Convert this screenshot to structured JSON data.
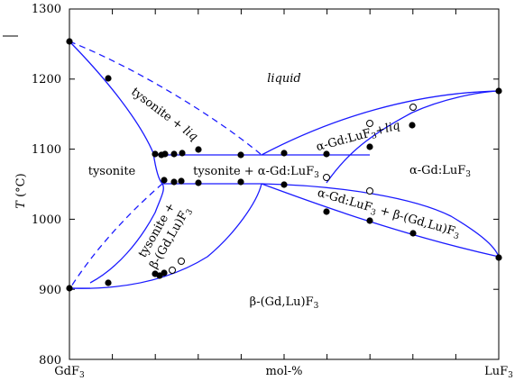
{
  "axes": {
    "y_label_main": "T",
    "y_label_unit": "(°C)",
    "y_ticks": [
      "1300",
      "1200",
      "1100",
      "1000",
      "900",
      "800"
    ],
    "x_tick_left": "GdF",
    "x_tick_middle": "mol-%",
    "x_tick_right": "LuF",
    "x_tick_sub": "3"
  },
  "regions": {
    "liquid": "liquid",
    "tysonite": "tysonite",
    "tysonite_liq_a": "tysonite + ",
    "tysonite_liq_b": "liq",
    "tysonite_alpha_a": "tysonite + α-Gd:LuF",
    "tysonite_alpha_sub": "3",
    "alpha_liq_a": "α-Gd:LuF",
    "alpha_liq_sub": "3",
    "alpha_liq_b": "+",
    "alpha_liq_c": "liq",
    "alpha": "α-Gd:LuF",
    "alpha_sub": "3",
    "tysonite_beta_line1": "tysonite +",
    "tysonite_beta_line2": "β-(Gd,Lu)F",
    "tysonite_beta_sub": "3",
    "alpha_beta_a": "α-Gd:LuF",
    "alpha_beta_sub1": "3",
    "alpha_beta_b": " + ",
    "alpha_beta_c": "β-(Gd,Lu)F",
    "alpha_beta_sub2": "3",
    "beta": "β-(Gd,Lu)F",
    "beta_sub": "3"
  },
  "colors": {
    "phase_boundary": "#1a1aff",
    "measured_point": "#000000",
    "open_point": "#ffffff"
  },
  "chart_data": {
    "type": "scatter",
    "ylabel": "T (°C)",
    "ylim": [
      800,
      1300
    ],
    "x_endpoints": [
      "GdF3",
      "LuF3"
    ],
    "xlabel": "mol-%",
    "filled_points_T": [
      1254,
      1200,
      1093,
      1091,
      1091,
      1092,
      1092,
      1097,
      1091,
      1093,
      1092,
      1103,
      1133,
      1181,
      1055,
      1052,
      1053,
      1051,
      1051,
      1048,
      1011,
      997,
      980,
      946,
      922,
      918,
      921,
      908,
      902
    ],
    "open_points_T": [
      1137,
      1159,
      1061,
      1040,
      927,
      940
    ]
  }
}
